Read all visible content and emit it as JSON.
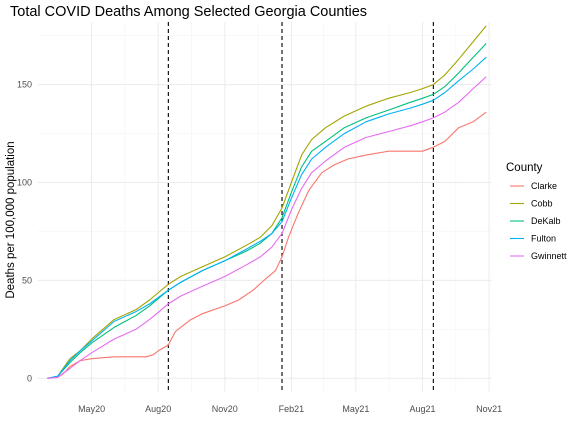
{
  "chart_data": {
    "type": "line",
    "title": "Total COVID Deaths Among Selected Georgia Counties",
    "xlabel": "",
    "ylabel": "Deaths per 100,000 population",
    "x_ticks": [
      {
        "date": "2020-05-01",
        "label": "May20"
      },
      {
        "date": "2020-08-01",
        "label": "Aug20"
      },
      {
        "date": "2020-11-01",
        "label": "Nov20"
      },
      {
        "date": "2021-02-01",
        "label": "Feb21"
      },
      {
        "date": "2021-05-01",
        "label": "May21"
      },
      {
        "date": "2021-08-01",
        "label": "Aug21"
      },
      {
        "date": "2021-11-01",
        "label": "Nov21"
      }
    ],
    "xlim": [
      "2020-02-17",
      "2021-11-05"
    ],
    "ylim": [
      -7,
      182
    ],
    "y_ticks": [
      0,
      50,
      100,
      150
    ],
    "grid": true,
    "vlines": [
      "2020-08-15",
      "2021-01-19",
      "2021-08-16"
    ],
    "legend": {
      "title": "County",
      "position": "right"
    },
    "series": [
      {
        "name": "Clarke",
        "color": "#F8766D",
        "points": [
          [
            "2020-03-01",
            0
          ],
          [
            "2020-03-15",
            0.5
          ],
          [
            "2020-03-22",
            2
          ],
          [
            "2020-04-01",
            6
          ],
          [
            "2020-04-15",
            9
          ],
          [
            "2020-05-01",
            10
          ],
          [
            "2020-06-01",
            11
          ],
          [
            "2020-07-15",
            11
          ],
          [
            "2020-07-25",
            12
          ],
          [
            "2020-08-01",
            14
          ],
          [
            "2020-08-15",
            17
          ],
          [
            "2020-08-25",
            24
          ],
          [
            "2020-09-15",
            30
          ],
          [
            "2020-10-01",
            33
          ],
          [
            "2020-11-01",
            37
          ],
          [
            "2020-11-20",
            40
          ],
          [
            "2020-12-10",
            45
          ],
          [
            "2020-12-25",
            50
          ],
          [
            "2021-01-10",
            55
          ],
          [
            "2021-01-19",
            62
          ],
          [
            "2021-01-28",
            72
          ],
          [
            "2021-02-10",
            84
          ],
          [
            "2021-02-25",
            96
          ],
          [
            "2021-03-15",
            105
          ],
          [
            "2021-04-01",
            109
          ],
          [
            "2021-04-20",
            112
          ],
          [
            "2021-05-15",
            114
          ],
          [
            "2021-06-15",
            116
          ],
          [
            "2021-07-15",
            116
          ],
          [
            "2021-08-01",
            116
          ],
          [
            "2021-08-16",
            118
          ],
          [
            "2021-09-01",
            121
          ],
          [
            "2021-09-20",
            128
          ],
          [
            "2021-10-10",
            131
          ],
          [
            "2021-10-28",
            136
          ]
        ]
      },
      {
        "name": "Cobb",
        "color": "#A3A500",
        "points": [
          [
            "2020-03-01",
            0
          ],
          [
            "2020-03-15",
            1
          ],
          [
            "2020-04-01",
            10
          ],
          [
            "2020-04-15",
            14
          ],
          [
            "2020-05-01",
            20
          ],
          [
            "2020-06-01",
            30
          ],
          [
            "2020-07-01",
            35
          ],
          [
            "2020-07-20",
            40
          ],
          [
            "2020-08-15",
            48
          ],
          [
            "2020-09-01",
            52
          ],
          [
            "2020-10-01",
            57
          ],
          [
            "2020-11-01",
            62
          ],
          [
            "2020-12-01",
            68
          ],
          [
            "2020-12-20",
            72
          ],
          [
            "2021-01-05",
            78
          ],
          [
            "2021-01-19",
            87
          ],
          [
            "2021-02-01",
            100
          ],
          [
            "2021-02-15",
            114
          ],
          [
            "2021-03-01",
            122
          ],
          [
            "2021-03-20",
            128
          ],
          [
            "2021-04-15",
            134
          ],
          [
            "2021-05-15",
            139
          ],
          [
            "2021-06-15",
            143
          ],
          [
            "2021-07-15",
            146
          ],
          [
            "2021-08-01",
            148
          ],
          [
            "2021-08-16",
            150
          ],
          [
            "2021-09-01",
            155
          ],
          [
            "2021-09-20",
            163
          ],
          [
            "2021-10-10",
            172
          ],
          [
            "2021-10-28",
            180
          ]
        ]
      },
      {
        "name": "DeKalb",
        "color": "#00BF7D",
        "points": [
          [
            "2020-03-01",
            0
          ],
          [
            "2020-03-15",
            1
          ],
          [
            "2020-04-01",
            8
          ],
          [
            "2020-04-15",
            13
          ],
          [
            "2020-05-01",
            18
          ],
          [
            "2020-06-01",
            26
          ],
          [
            "2020-07-01",
            32
          ],
          [
            "2020-07-20",
            37
          ],
          [
            "2020-08-15",
            45
          ],
          [
            "2020-09-01",
            49
          ],
          [
            "2020-10-01",
            55
          ],
          [
            "2020-11-01",
            60
          ],
          [
            "2020-12-01",
            65
          ],
          [
            "2020-12-20",
            69
          ],
          [
            "2021-01-05",
            74
          ],
          [
            "2021-01-19",
            82
          ],
          [
            "2021-02-01",
            95
          ],
          [
            "2021-02-15",
            108
          ],
          [
            "2021-03-01",
            116
          ],
          [
            "2021-03-20",
            121
          ],
          [
            "2021-04-15",
            128
          ],
          [
            "2021-05-15",
            133
          ],
          [
            "2021-06-15",
            137
          ],
          [
            "2021-07-15",
            141
          ],
          [
            "2021-08-01",
            143
          ],
          [
            "2021-08-16",
            145
          ],
          [
            "2021-09-01",
            149
          ],
          [
            "2021-09-20",
            156
          ],
          [
            "2021-10-10",
            164
          ],
          [
            "2021-10-28",
            171
          ]
        ]
      },
      {
        "name": "Fulton",
        "color": "#00B0F6",
        "points": [
          [
            "2020-03-01",
            0
          ],
          [
            "2020-03-15",
            1
          ],
          [
            "2020-04-01",
            9
          ],
          [
            "2020-04-15",
            14
          ],
          [
            "2020-05-01",
            19
          ],
          [
            "2020-06-01",
            29
          ],
          [
            "2020-07-01",
            34
          ],
          [
            "2020-07-20",
            38
          ],
          [
            "2020-08-15",
            45
          ],
          [
            "2020-09-01",
            49
          ],
          [
            "2020-10-01",
            55
          ],
          [
            "2020-11-01",
            60
          ],
          [
            "2020-12-01",
            66
          ],
          [
            "2020-12-20",
            70
          ],
          [
            "2021-01-05",
            74
          ],
          [
            "2021-01-19",
            80
          ],
          [
            "2021-02-01",
            92
          ],
          [
            "2021-02-15",
            104
          ],
          [
            "2021-03-01",
            112
          ],
          [
            "2021-03-20",
            118
          ],
          [
            "2021-04-15",
            125
          ],
          [
            "2021-05-15",
            131
          ],
          [
            "2021-06-15",
            135
          ],
          [
            "2021-07-15",
            138
          ],
          [
            "2021-08-01",
            140
          ],
          [
            "2021-08-16",
            142
          ],
          [
            "2021-09-01",
            146
          ],
          [
            "2021-09-20",
            152
          ],
          [
            "2021-10-10",
            158
          ],
          [
            "2021-10-28",
            164
          ]
        ]
      },
      {
        "name": "Gwinnett",
        "color": "#E76BF3",
        "points": [
          [
            "2020-03-01",
            0
          ],
          [
            "2020-03-15",
            0.5
          ],
          [
            "2020-04-01",
            5
          ],
          [
            "2020-04-15",
            9
          ],
          [
            "2020-05-01",
            13
          ],
          [
            "2020-06-01",
            20
          ],
          [
            "2020-07-01",
            25
          ],
          [
            "2020-07-20",
            30
          ],
          [
            "2020-08-15",
            38
          ],
          [
            "2020-09-01",
            42
          ],
          [
            "2020-10-01",
            47
          ],
          [
            "2020-11-01",
            52
          ],
          [
            "2020-12-01",
            58
          ],
          [
            "2020-12-20",
            62
          ],
          [
            "2021-01-05",
            67
          ],
          [
            "2021-01-19",
            74
          ],
          [
            "2021-02-01",
            86
          ],
          [
            "2021-02-15",
            97
          ],
          [
            "2021-03-01",
            105
          ],
          [
            "2021-03-20",
            111
          ],
          [
            "2021-04-15",
            118
          ],
          [
            "2021-05-15",
            123
          ],
          [
            "2021-06-15",
            126
          ],
          [
            "2021-07-15",
            129
          ],
          [
            "2021-08-01",
            131
          ],
          [
            "2021-08-16",
            133
          ],
          [
            "2021-09-01",
            136
          ],
          [
            "2021-09-20",
            141
          ],
          [
            "2021-10-10",
            148
          ],
          [
            "2021-10-28",
            154
          ]
        ]
      }
    ]
  }
}
